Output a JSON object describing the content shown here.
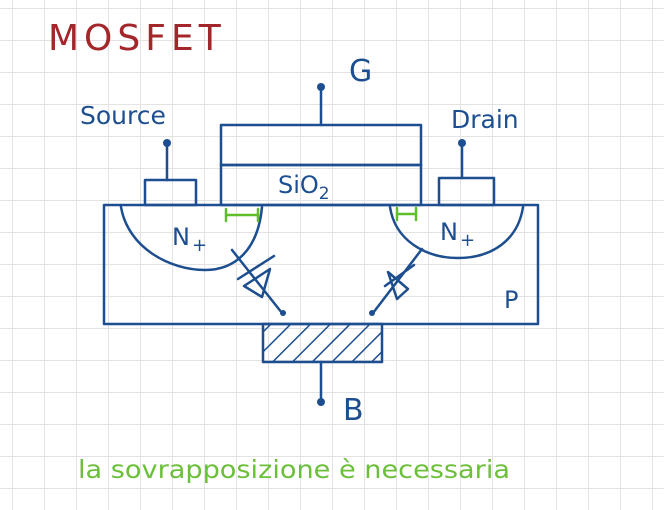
{
  "title": "MOSFET",
  "labels": {
    "gate": "G",
    "source": "Source",
    "drain": "Drain",
    "oxide_main": "SiO",
    "oxide_sub": "2",
    "n_left_main": "N",
    "n_left_sign": "+",
    "n_right_main": "N",
    "n_right_sign": "+",
    "substrate": "P",
    "body": "B"
  },
  "note": "la sovrapposizione è necessaria",
  "colors": {
    "title": "#a3262a",
    "ink": "#1d4e8f",
    "overlap": "#5fbf2b",
    "note": "#6cbf3a",
    "grid": "#e3e3e3"
  }
}
